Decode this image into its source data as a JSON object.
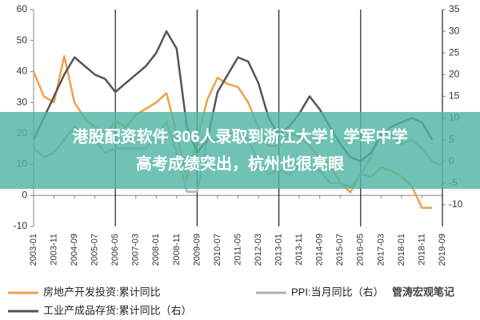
{
  "chart_data": {
    "type": "line",
    "categories": [
      "2003-01",
      null,
      "2003-11",
      null,
      "2004-09",
      null,
      "2005-07",
      null,
      "2006-05",
      null,
      "2007-03",
      null,
      "2008-01",
      null,
      "2008-11",
      null,
      "2009-09",
      null,
      "2010-07",
      null,
      "2011-05",
      null,
      "2012-03",
      null,
      "2013-01",
      null,
      "2013-11",
      null,
      "2014-09",
      null,
      "2015-07",
      null,
      "2016-05",
      null,
      "2017-03",
      null,
      "2018-01",
      null,
      "2018-11",
      null,
      "2019-09"
    ],
    "series": [
      {
        "name": "房地产开发投资:累计同比",
        "color": "#f0a04b",
        "axis": "y",
        "values": [
          40,
          32,
          30,
          45,
          30,
          25,
          22,
          20,
          24,
          22,
          26,
          28,
          30,
          33,
          20,
          5,
          18,
          31,
          38,
          36,
          35,
          30,
          22,
          16,
          16,
          20,
          19,
          16,
          12,
          10,
          4,
          1,
          7,
          6,
          9,
          8,
          6,
          3,
          -4,
          -4,
          null
        ]
      },
      {
        "name": "PPI:当月同比（右）",
        "color": "#b3b3b3",
        "axis": "y2",
        "values": [
          3,
          1,
          2,
          5,
          8,
          6,
          5,
          2,
          3,
          3,
          3,
          3,
          6,
          9,
          2,
          -7,
          -7,
          5,
          5,
          6,
          7,
          5,
          0,
          -3,
          -2,
          -3,
          -1,
          -2,
          -2,
          -5,
          -5,
          -6,
          -3,
          1,
          7,
          6,
          4,
          5,
          3,
          0,
          -1
        ]
      },
      {
        "name": "工业产成品存货:累计同比（右）",
        "color": "#555555",
        "axis": "y2",
        "values": [
          5,
          10,
          15,
          20,
          24,
          22,
          20,
          19,
          16,
          18,
          20,
          22,
          25,
          30,
          26,
          8,
          2,
          5,
          16,
          20,
          24,
          23,
          18,
          10,
          6,
          8,
          11,
          15,
          12,
          8,
          4,
          1,
          0,
          2,
          6,
          8,
          9,
          10,
          9,
          5,
          null
        ]
      }
    ],
    "ylim": [
      -10,
      60
    ],
    "yticks": [
      -10,
      0,
      10,
      20,
      30,
      40,
      50,
      60
    ],
    "y2lim": [
      -15,
      35
    ],
    "y2ticks": [
      -10,
      -5,
      0,
      5,
      10,
      15,
      20,
      25,
      30,
      35
    ],
    "vertical_lines": [
      "2006-05",
      "2009-09",
      "2013-01",
      "2016-05",
      "2019-09"
    ],
    "watermark": "管涛宏观笔记"
  },
  "overlay": {
    "lines": [
      "港股配资软件 306人录取到浙江大学！学军中学",
      "高考成绩突出，杭州也很亮眼"
    ]
  }
}
